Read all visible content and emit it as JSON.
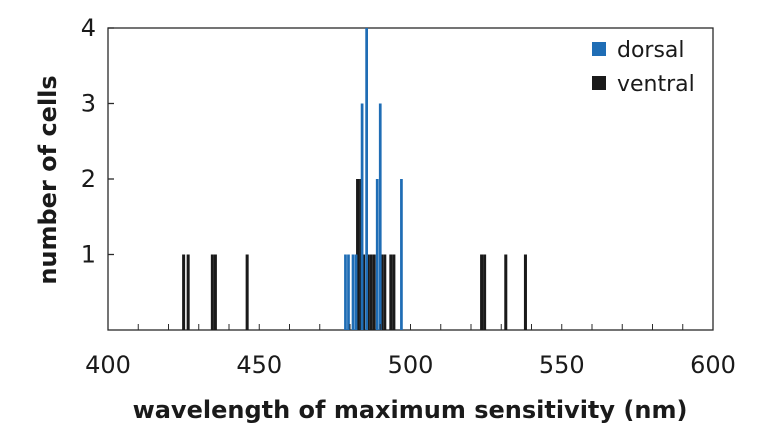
{
  "chart_data": {
    "type": "bar",
    "xlabel": "wavelength of maximum sensitivity (nm)",
    "ylabel": "number of cells",
    "xlim": [
      400,
      600
    ],
    "ylim": [
      0,
      4
    ],
    "x_ticks": [
      "400",
      "450",
      "500",
      "550",
      "600"
    ],
    "y_ticks": [
      "1",
      "2",
      "3",
      "4"
    ],
    "x_minor_step": 10,
    "legend_position": "top-right",
    "series": [
      {
        "name": "ventral",
        "color": "#1a1a1a",
        "bar_width": 1,
        "points": [
          {
            "x": 425,
            "y": 1
          },
          {
            "x": 426.5,
            "y": 1
          },
          {
            "x": 434.5,
            "y": 1
          },
          {
            "x": 435.5,
            "y": 1
          },
          {
            "x": 446,
            "y": 1
          },
          {
            "x": 482.5,
            "y": 2
          },
          {
            "x": 483.5,
            "y": 2
          },
          {
            "x": 484.5,
            "y": 1
          },
          {
            "x": 486,
            "y": 1
          },
          {
            "x": 487,
            "y": 1
          },
          {
            "x": 488,
            "y": 1
          },
          {
            "x": 490.5,
            "y": 1
          },
          {
            "x": 491.5,
            "y": 1
          },
          {
            "x": 493.5,
            "y": 1
          },
          {
            "x": 494.5,
            "y": 1
          },
          {
            "x": 523.5,
            "y": 1
          },
          {
            "x": 524.5,
            "y": 1
          },
          {
            "x": 531.5,
            "y": 1
          },
          {
            "x": 538,
            "y": 1
          }
        ]
      },
      {
        "name": "dorsal",
        "color": "#1f6db5",
        "bar_width": 0.9,
        "points": [
          {
            "x": 478.5,
            "y": 1
          },
          {
            "x": 479.5,
            "y": 1
          },
          {
            "x": 481,
            "y": 1
          },
          {
            "x": 482,
            "y": 1
          },
          {
            "x": 484,
            "y": 3
          },
          {
            "x": 485.5,
            "y": 4
          },
          {
            "x": 489,
            "y": 2
          },
          {
            "x": 490,
            "y": 3
          },
          {
            "x": 497,
            "y": 2
          }
        ]
      }
    ]
  }
}
